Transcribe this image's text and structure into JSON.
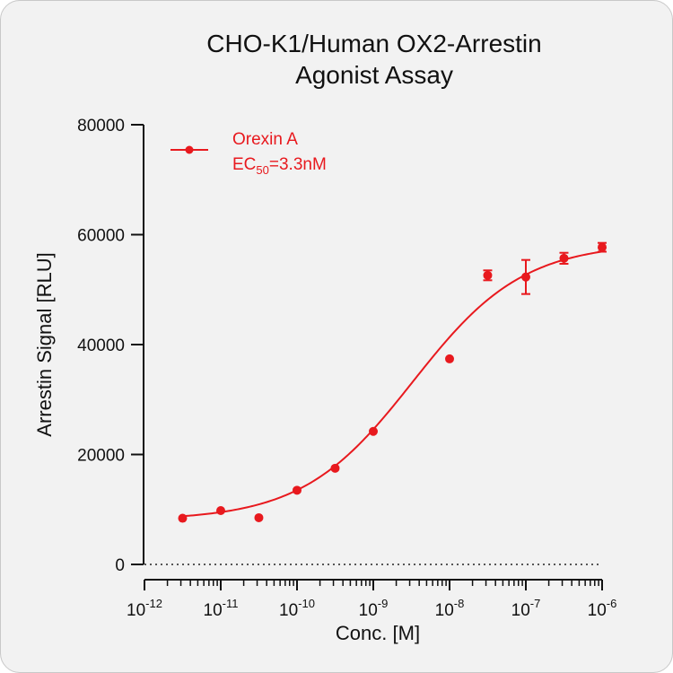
{
  "chart_data": {
    "type": "scatter",
    "title_lines": [
      "CHO-K1/Human OX2-Arrestin",
      "Agonist Assay"
    ],
    "xlabel": "Conc. [M]",
    "ylabel": "Arrestin Signal [RLU]",
    "x_scale": "log",
    "xlim": [
      1e-12,
      1e-06
    ],
    "ylim": [
      0,
      80000
    ],
    "x_ticks": [
      {
        "base": "10",
        "exp": "-12"
      },
      {
        "base": "10",
        "exp": "-11"
      },
      {
        "base": "10",
        "exp": "-10"
      },
      {
        "base": "10",
        "exp": "-9"
      },
      {
        "base": "10",
        "exp": "-8"
      },
      {
        "base": "10",
        "exp": "-7"
      },
      {
        "base": "10",
        "exp": "-6"
      }
    ],
    "y_ticks": [
      "0",
      "20000",
      "40000",
      "60000",
      "80000"
    ],
    "grid": false,
    "zero_line": "dotted",
    "legend_position": "top-left",
    "series": [
      {
        "name": "Orexin A",
        "color": "#e8191e",
        "ec50_label": {
          "prefix": "EC",
          "subscript": "50",
          "suffix": "=3.3nM"
        },
        "x": [
          3.16e-12,
          1e-11,
          3.16e-11,
          1e-10,
          3.16e-10,
          1e-09,
          1e-08,
          3.16e-08,
          1e-07,
          3.16e-07,
          1e-06
        ],
        "y": [
          8400,
          9800,
          8500,
          13500,
          17500,
          24200,
          37400,
          52600,
          52300,
          55700,
          57700
        ],
        "y_err": [
          0,
          0,
          0,
          0,
          0,
          0,
          0,
          900,
          3100,
          1000,
          800
        ],
        "fit": {
          "bottom": 8000,
          "top": 58500,
          "ec50": 3.3e-09,
          "hill": 0.6
        }
      }
    ]
  }
}
